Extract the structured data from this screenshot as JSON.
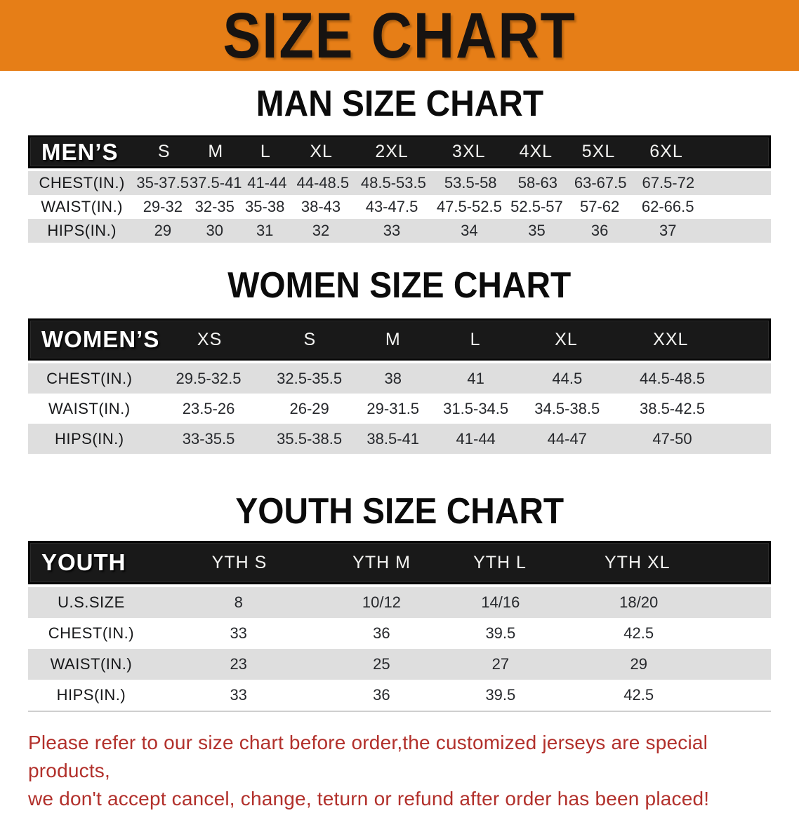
{
  "banner": {
    "title": "SIZE CHART"
  },
  "sections": [
    {
      "heading": "MAN SIZE CHART",
      "table": {
        "header_label": "MEN’S",
        "columns": [
          "S",
          "M",
          "L",
          "XL",
          "2XL",
          "3XL",
          "4XL",
          "5XL",
          "6XL"
        ],
        "rows": [
          {
            "label": "CHEST(IN.)",
            "values": [
              "35-37.5",
              "37.5-41",
              "41-44",
              "44-48.5",
              "48.5-53.5",
              "53.5-58",
              "58-63",
              "63-67.5",
              "67.5-72"
            ]
          },
          {
            "label": "WAIST(IN.)",
            "values": [
              "29-32",
              "32-35",
              "35-38",
              "38-43",
              "43-47.5",
              "47.5-52.5",
              "52.5-57",
              "57-62",
              "62-66.5"
            ]
          },
          {
            "label": "HIPS(IN.)",
            "values": [
              "29",
              "30",
              "31",
              "32",
              "33",
              "34",
              "35",
              "36",
              "37"
            ]
          }
        ]
      }
    },
    {
      "heading": "WOMEN SIZE CHART",
      "table": {
        "header_label": "WOMEN’S",
        "columns": [
          "XS",
          "S",
          "M",
          "L",
          "XL",
          "XXL"
        ],
        "rows": [
          {
            "label": "CHEST(IN.)",
            "values": [
              "29.5-32.5",
              "32.5-35.5",
              "38",
              "41",
              "44.5",
              "44.5-48.5"
            ]
          },
          {
            "label": "WAIST(IN.)",
            "values": [
              "23.5-26",
              "26-29",
              "29-31.5",
              "31.5-34.5",
              "34.5-38.5",
              "38.5-42.5"
            ]
          },
          {
            "label": "HIPS(IN.)",
            "values": [
              "33-35.5",
              "35.5-38.5",
              "38.5-41",
              "41-44",
              "44-47",
              "47-50"
            ]
          }
        ]
      }
    },
    {
      "heading": "YOUTH SIZE CHART",
      "table": {
        "header_label": "YOUTH",
        "columns": [
          "YTH S",
          "YTH M",
          "YTH L",
          "YTH XL"
        ],
        "rows": [
          {
            "label": "U.S.SIZE",
            "values": [
              "8",
              "10/12",
              "14/16",
              "18/20"
            ]
          },
          {
            "label": "CHEST(IN.)",
            "values": [
              "33",
              "36",
              "39.5",
              "42.5"
            ]
          },
          {
            "label": "WAIST(IN.)",
            "values": [
              "23",
              "25",
              "27",
              "29"
            ]
          },
          {
            "label": "HIPS(IN.)",
            "values": [
              "33",
              "36",
              "39.5",
              "42.5"
            ]
          }
        ]
      }
    }
  ],
  "footer": {
    "line1": "Please refer to our size chart before order,the customized jerseys are special products,",
    "line2": "we don't accept cancel, change, teturn or refund after order has been placed!"
  },
  "colors": {
    "banner_orange": "#E67E17",
    "table_header_black": "#191919",
    "row_gray": "#DEDEDE",
    "footer_red": "#B2302B"
  }
}
